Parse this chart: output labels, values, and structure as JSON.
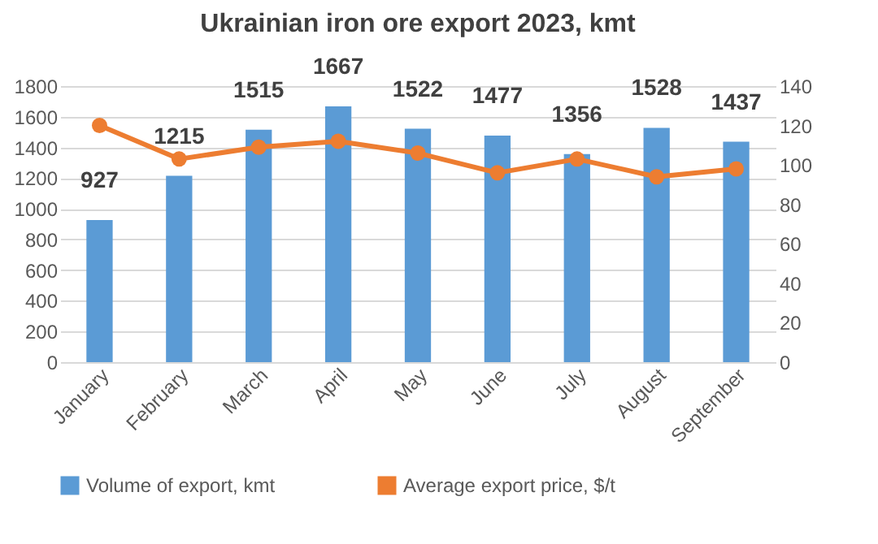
{
  "chart_data": {
    "type": "bar",
    "title": "Ukrainian iron ore export 2023, kmt",
    "categories": [
      "January",
      "February",
      "March",
      "April",
      "May",
      "June",
      "July",
      "August",
      "September"
    ],
    "series": [
      {
        "name": "Volume of export, kmt",
        "color": "#5b9bd5",
        "values": [
          927,
          1215,
          1515,
          1667,
          1522,
          1477,
          1356,
          1528,
          1437
        ],
        "data_labels": true
      },
      {
        "name": "Average export price, $/t",
        "type": "line",
        "axis": "y2",
        "color": "#ed7d31",
        "marker": "circle",
        "values": [
          120,
          103,
          109,
          112,
          106,
          96,
          103,
          94,
          98
        ]
      }
    ],
    "ylim": [
      0,
      1800
    ],
    "yticks": [
      0,
      200,
      400,
      600,
      800,
      1000,
      1200,
      1400,
      1600,
      1800
    ],
    "y2lim": [
      0,
      140
    ],
    "y2ticks": [
      0,
      20,
      40,
      60,
      80,
      100,
      120,
      140
    ],
    "grid": "y",
    "legend": "bottom"
  }
}
